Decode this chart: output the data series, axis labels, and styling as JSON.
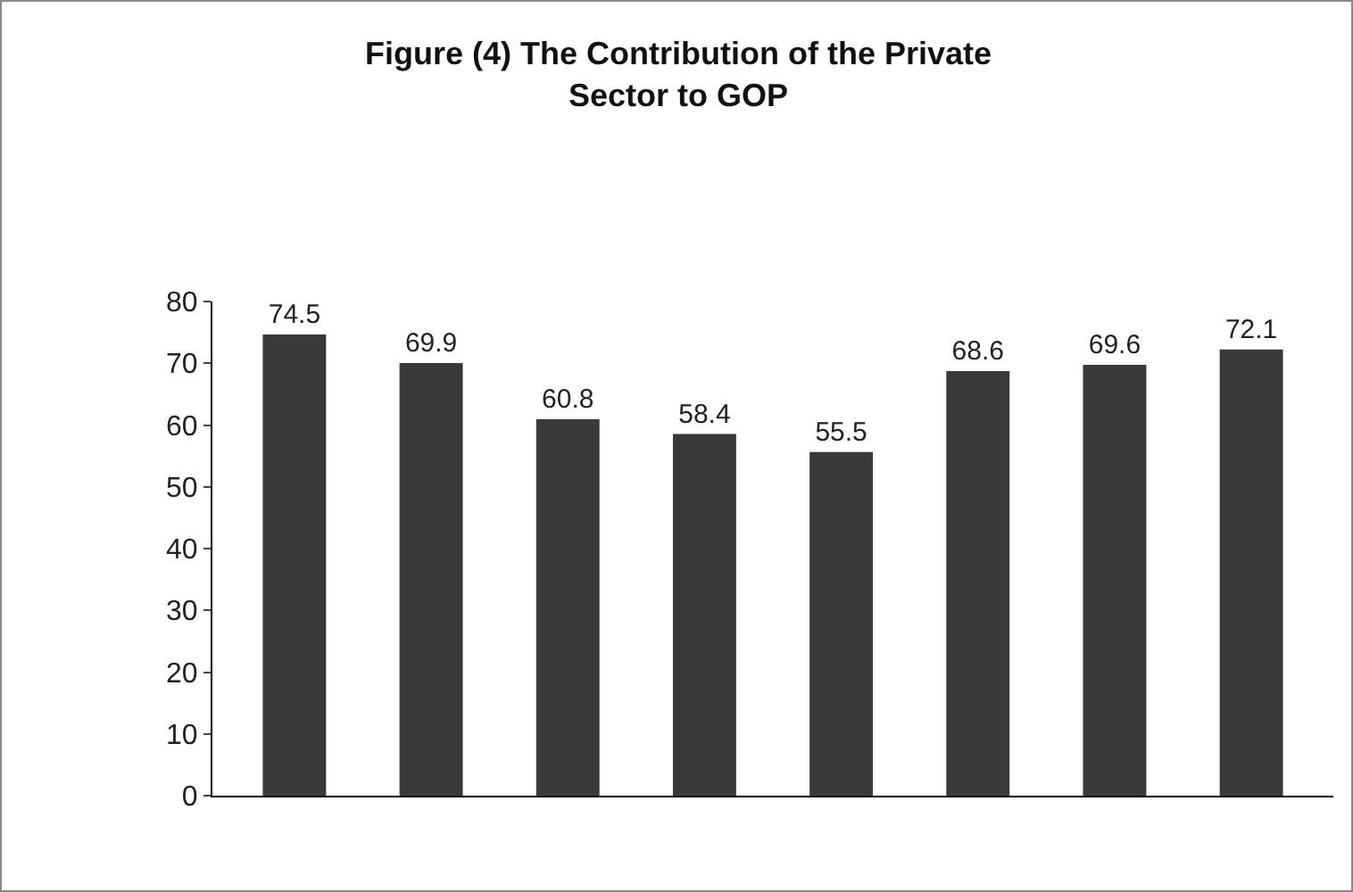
{
  "chart_data": {
    "type": "bar",
    "title": "Figure (4) The Contribution of the Private\nSector to GOP",
    "categories": [
      null,
      null,
      null,
      null,
      null,
      null,
      null,
      null
    ],
    "values": [
      74.5,
      69.9,
      60.8,
      58.4,
      55.5,
      68.6,
      69.6,
      72.1
    ],
    "color": "#3a3a3a",
    "ylim": [
      0,
      80
    ],
    "yticks": [
      0,
      10,
      20,
      30,
      40,
      50,
      60,
      70,
      80
    ],
    "data_labels": true,
    "grid": false
  }
}
